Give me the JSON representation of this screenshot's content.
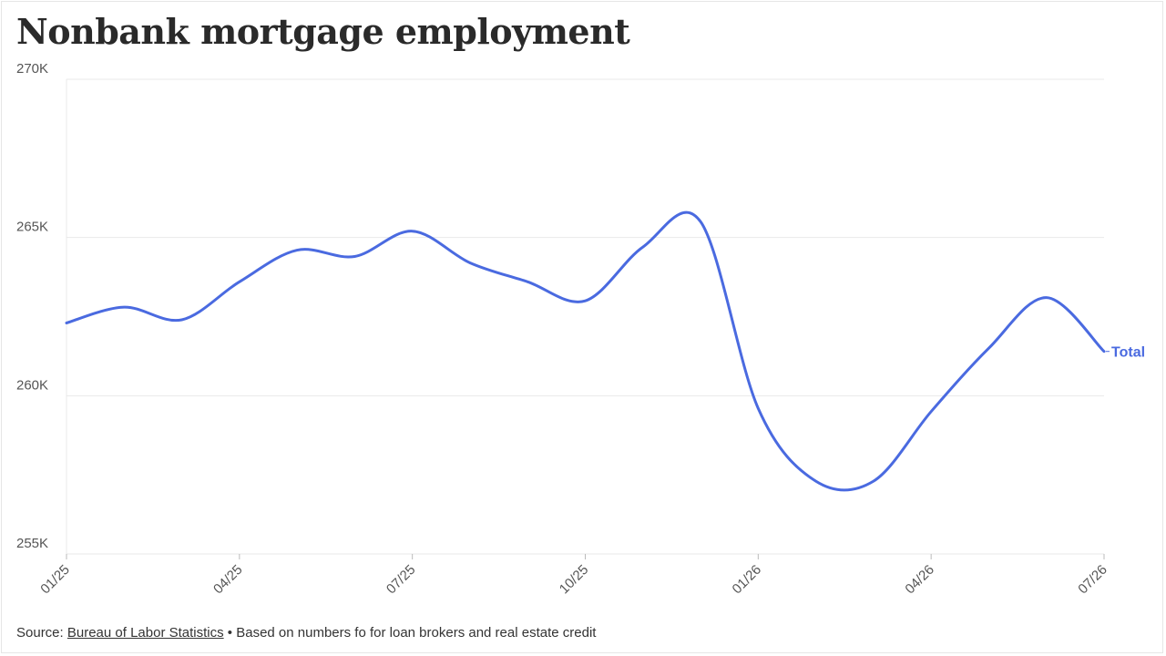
{
  "title": "Nonbank mortgage employment",
  "footer": {
    "source_prefix": "Source: ",
    "source_link": "Bureau of Labor Statistics",
    "note": " • Based on numbers fo for loan brokers and real estate credit"
  },
  "colors": {
    "line": "#4a6ae0",
    "grid": "#e9e9e9",
    "axis_text": "#555555"
  },
  "chart_data": {
    "type": "line",
    "title": "Nonbank mortgage employment",
    "x": [
      "01/25",
      "02/25",
      "03/25",
      "04/25",
      "05/25",
      "06/25",
      "07/25",
      "08/25",
      "09/25",
      "10/25",
      "11/25",
      "12/25",
      "01/26",
      "02/26",
      "03/26",
      "04/26",
      "05/26",
      "06/26",
      "07/26"
    ],
    "x_tick_labels": [
      "01/25",
      "04/25",
      "07/25",
      "10/25",
      "01/26",
      "04/26",
      "07/26"
    ],
    "series": [
      {
        "name": "Total",
        "values": [
          262300,
          262800,
          262400,
          263600,
          264600,
          264400,
          265200,
          264200,
          263600,
          263000,
          264700,
          265500,
          259600,
          257300,
          257300,
          259500,
          261500,
          263100,
          261400
        ]
      }
    ],
    "y_tick_labels": [
      "255K",
      "260K",
      "265K",
      "270K"
    ],
    "y_ticks": [
      255000,
      260000,
      265000,
      270000
    ],
    "ylim": [
      255000,
      270000
    ],
    "grid": true,
    "legend": "end-of-line label"
  }
}
